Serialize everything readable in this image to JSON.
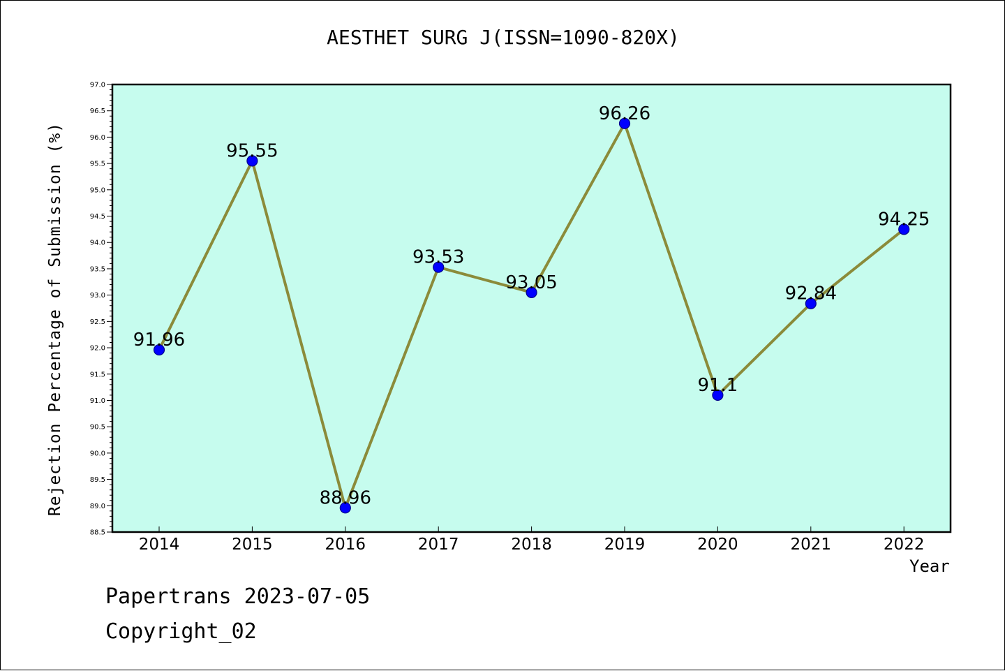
{
  "chart_data": {
    "type": "line",
    "title": "AESTHET SURG J(ISSN=1090-820X)",
    "xlabel": "Year",
    "ylabel": "Rejection Percentage of Submission (%)",
    "categories": [
      "2014",
      "2015",
      "2016",
      "2017",
      "2018",
      "2019",
      "2020",
      "2021",
      "2022"
    ],
    "values": [
      91.96,
      95.55,
      88.96,
      93.53,
      93.05,
      96.26,
      91.1,
      92.84,
      94.25
    ],
    "data_labels": [
      "91.96",
      "95.55",
      "88.96",
      "93.53",
      "93.05",
      "96.26",
      "91.1",
      "92.84",
      "94.25"
    ],
    "ylim": [
      88.5,
      97.0
    ],
    "y_ticks": [
      "88.5",
      "89.0",
      "89.5",
      "90.0",
      "90.5",
      "91.0",
      "91.5",
      "92.0",
      "92.5",
      "93.0",
      "93.5",
      "94.0",
      "94.5",
      "95.0",
      "95.5",
      "96.0",
      "96.5",
      "97.0"
    ],
    "grid": false,
    "legend": "none",
    "colors": {
      "plot_background": "#c6fcee",
      "line": "#8b8b3a",
      "marker_fill": "#0000ff",
      "marker_edge": "#00008b"
    }
  },
  "footer": {
    "line1": "Papertrans 2023-07-05",
    "line2": "Copyright_02"
  }
}
